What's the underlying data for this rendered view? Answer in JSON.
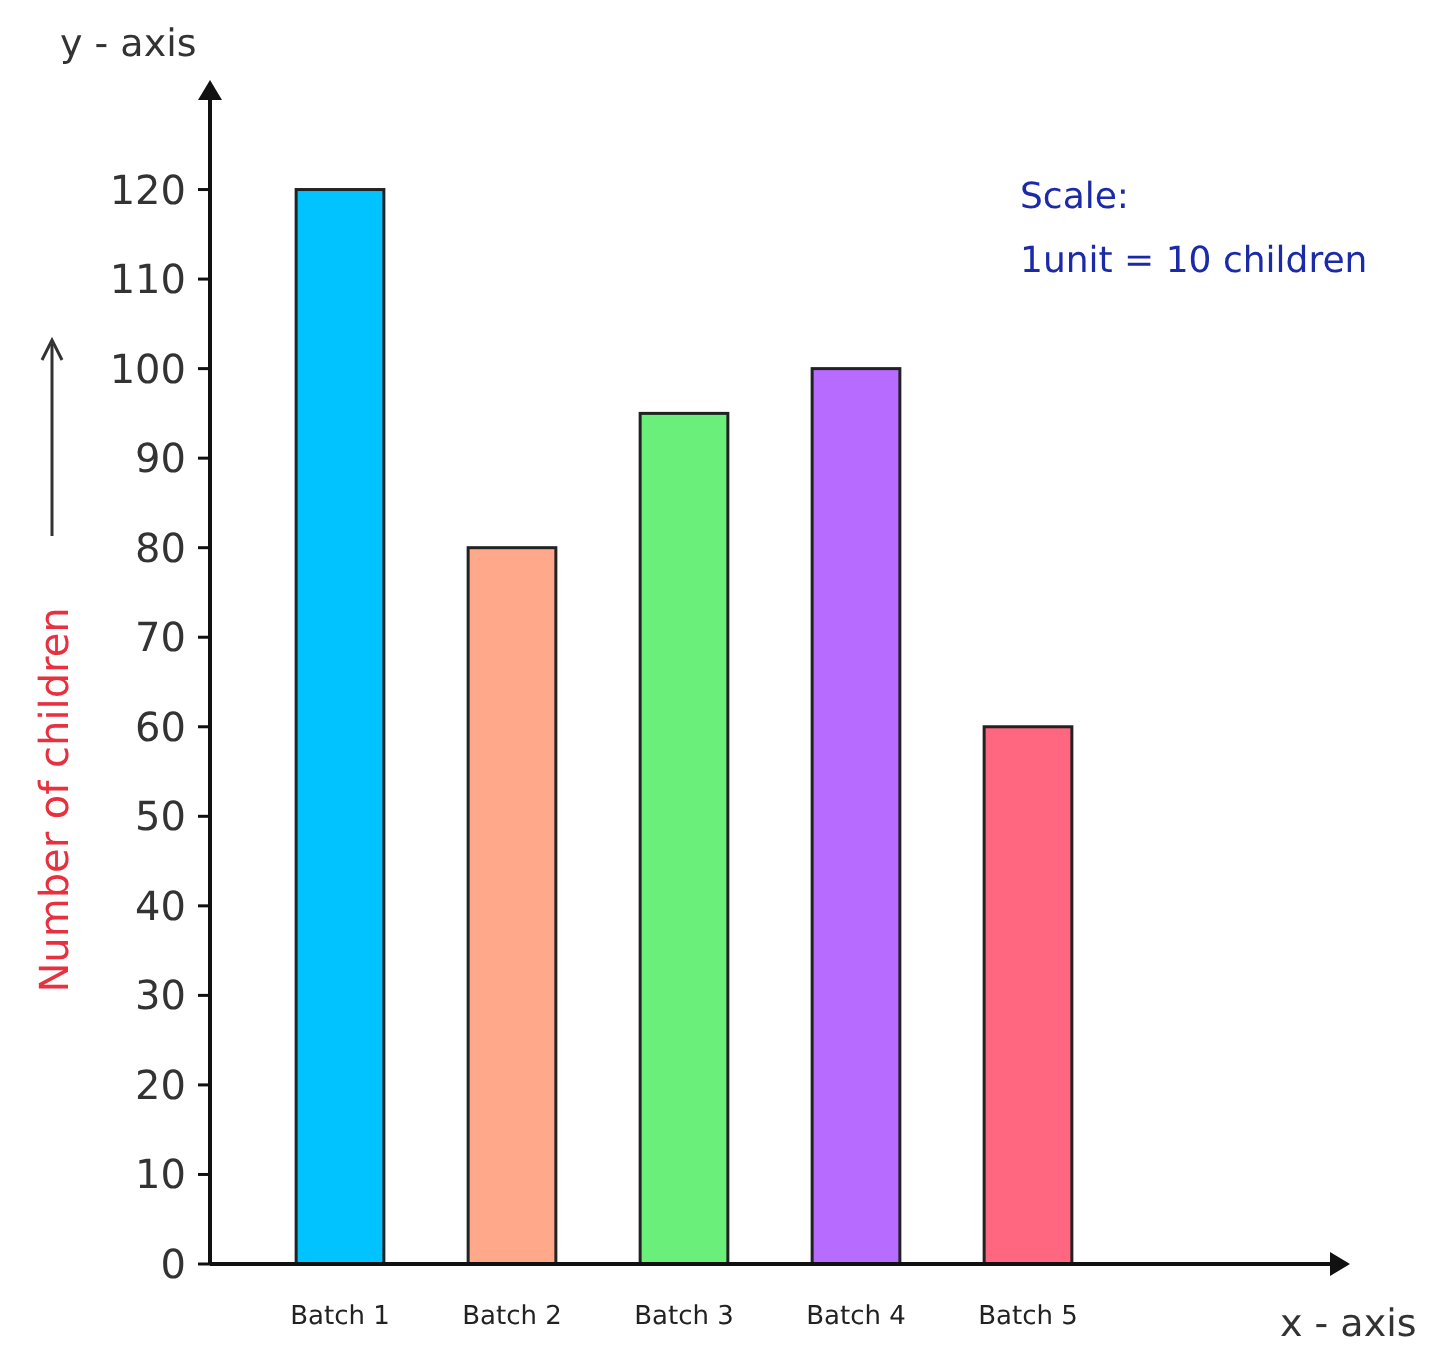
{
  "chart_data": {
    "type": "bar",
    "ylabel": "Number of children",
    "categories": [
      "Batch 1",
      "Batch 2",
      "Batch 3",
      "Batch 4",
      "Batch 5"
    ],
    "values": [
      120,
      80,
      95,
      100,
      60
    ],
    "colors": [
      "#00c3ff",
      "#ffa98a",
      "#6af07a",
      "#b86cff",
      "#ff6680"
    ],
    "ylim": [
      0,
      130
    ],
    "yticks": [
      0,
      10,
      20,
      30,
      40,
      50,
      60,
      70,
      80,
      90,
      100,
      110,
      120
    ],
    "grid": false,
    "annotations": [
      "y - axis",
      "x - axis",
      "Scale:",
      "1unit = 10 children"
    ]
  }
}
